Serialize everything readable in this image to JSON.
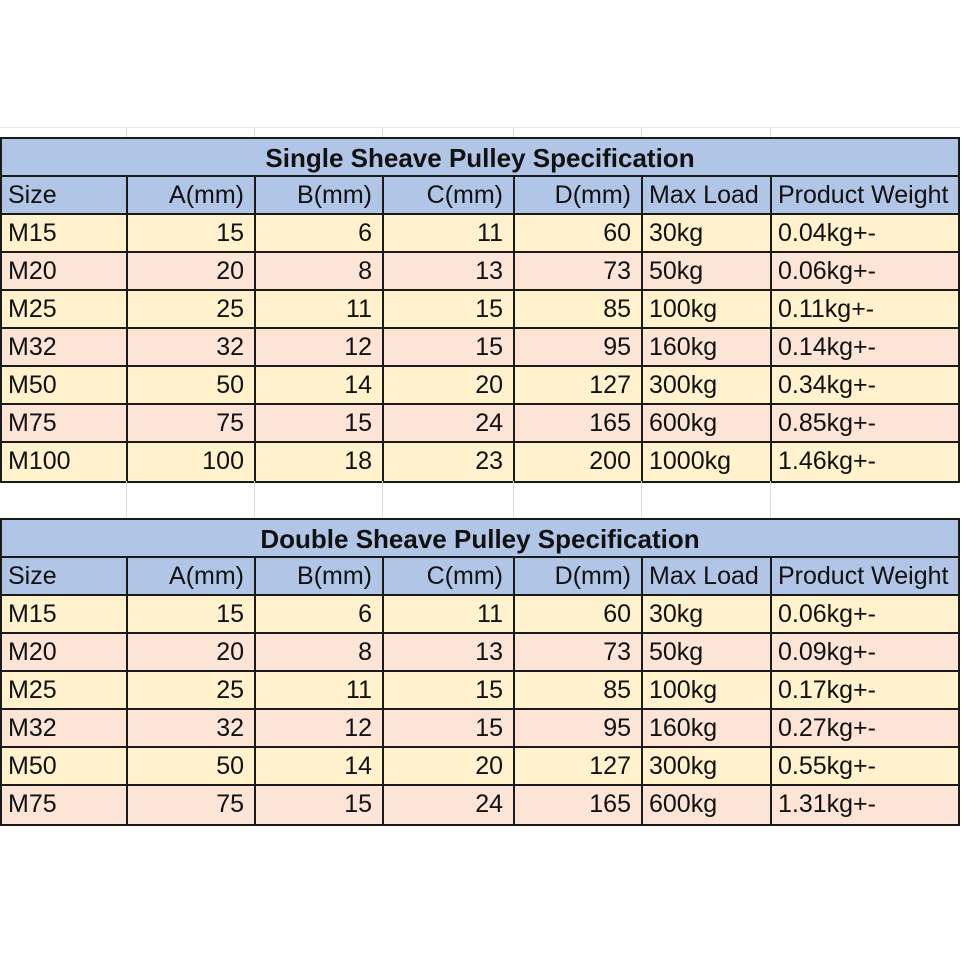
{
  "colors": {
    "title_header_blue": "#b1c5e7",
    "row_yellow": "#fff2cc",
    "row_pink": "#fce4d6",
    "table_border": "#1a1a1a",
    "faint_gridline": "#dcdcdc",
    "text": "#111111",
    "background": "#ffffff"
  },
  "tables": [
    {
      "title": "Single Sheave Pulley Specification",
      "columns": [
        "Size",
        "A(mm)",
        "B(mm)",
        "C(mm)",
        "D(mm)",
        "Max Load",
        "Product Weight"
      ],
      "rows": [
        [
          "M15",
          "15",
          "6",
          "11",
          "60",
          "30kg",
          "0.04kg+-"
        ],
        [
          "M20",
          "20",
          "8",
          "13",
          "73",
          "50kg",
          "0.06kg+-"
        ],
        [
          "M25",
          "25",
          "11",
          "15",
          "85",
          "100kg",
          "0.11kg+-"
        ],
        [
          "M32",
          "32",
          "12",
          "15",
          "95",
          "160kg",
          "0.14kg+-"
        ],
        [
          "M50",
          "50",
          "14",
          "20",
          "127",
          "300kg",
          "0.34kg+-"
        ],
        [
          "M75",
          "75",
          "15",
          "24",
          "165",
          "600kg",
          "0.85kg+-"
        ],
        [
          "M100",
          "100",
          "18",
          "23",
          "200",
          "1000kg",
          "1.46kg+-"
        ]
      ]
    },
    {
      "title": "Double Sheave Pulley Specification",
      "columns": [
        "Size",
        "A(mm)",
        "B(mm)",
        "C(mm)",
        "D(mm)",
        "Max Load",
        "Product Weight"
      ],
      "rows": [
        [
          "M15",
          "15",
          "6",
          "11",
          "60",
          "30kg",
          "0.06kg+-"
        ],
        [
          "M20",
          "20",
          "8",
          "13",
          "73",
          "50kg",
          "0.09kg+-"
        ],
        [
          "M25",
          "25",
          "11",
          "15",
          "85",
          "100kg",
          "0.17kg+-"
        ],
        [
          "M32",
          "32",
          "12",
          "15",
          "95",
          "160kg",
          "0.27kg+-"
        ],
        [
          "M50",
          "50",
          "14",
          "20",
          "127",
          "300kg",
          "0.55kg+-"
        ],
        [
          "M75",
          "75",
          "15",
          "24",
          "165",
          "600kg",
          "1.31kg+-"
        ]
      ]
    }
  ]
}
